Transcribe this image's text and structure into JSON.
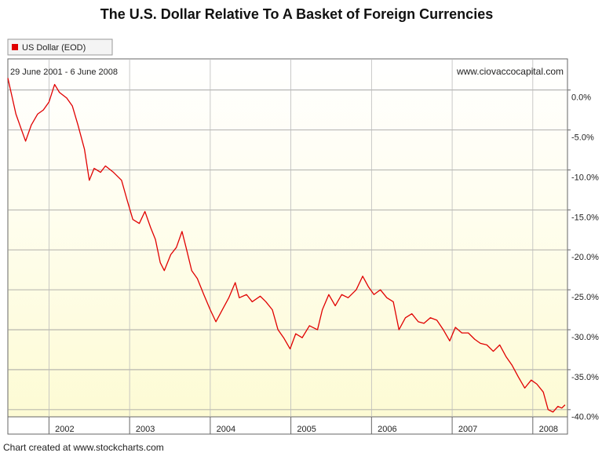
{
  "chart_data": {
    "type": "line",
    "title": "The U.S. Dollar Relative To A Basket of Foreign Currencies",
    "date_range": "29 June 2001 - 6 June 2008",
    "annotation": "www.ciovaccocapital.com",
    "footer": "Chart created at www.stockcharts.com",
    "x": [
      2001.49,
      2001.53,
      2001.59,
      2001.66,
      2001.71,
      2001.78,
      2001.86,
      2001.93,
      2002.0,
      2002.07,
      2002.13,
      2002.22,
      2002.29,
      2002.36,
      2002.44,
      2002.5,
      2002.56,
      2002.64,
      2002.7,
      2002.8,
      2002.9,
      2002.97,
      2003.04,
      2003.12,
      2003.19,
      2003.26,
      2003.32,
      2003.38,
      2003.43,
      2003.51,
      2003.58,
      2003.65,
      2003.7,
      2003.77,
      2003.84,
      2003.92,
      2004.0,
      2004.07,
      2004.15,
      2004.23,
      2004.31,
      2004.36,
      2004.45,
      2004.52,
      2004.62,
      2004.69,
      2004.77,
      2004.84,
      2004.91,
      2004.99,
      2005.06,
      2005.14,
      2005.23,
      2005.33,
      2005.39,
      2005.47,
      2005.55,
      2005.63,
      2005.71,
      2005.81,
      2005.89,
      2005.96,
      2006.03,
      2006.11,
      2006.19,
      2006.27,
      2006.34,
      2006.42,
      2006.5,
      2006.58,
      2006.65,
      2006.73,
      2006.81,
      2006.89,
      2006.97,
      2007.04,
      2007.12,
      2007.2,
      2007.28,
      2007.35,
      2007.43,
      2007.51,
      2007.59,
      2007.67,
      2007.74,
      2007.82,
      2007.9,
      2007.98,
      2008.05,
      2008.13,
      2008.19,
      2008.25,
      2008.31,
      2008.36,
      2008.4
    ],
    "series": [
      {
        "name": "US Dollar (EOD)",
        "color": "#e00000",
        "values": [
          1.5,
          -0.3,
          -3,
          -5,
          -6.4,
          -4.4,
          -3,
          -2.5,
          -1.5,
          0.7,
          -0.3,
          -1,
          -2,
          -4.4,
          -7.4,
          -11.3,
          -9.8,
          -10.3,
          -9.5,
          -10.3,
          -11.3,
          -13.8,
          -16.2,
          -16.7,
          -15.2,
          -17.2,
          -18.7,
          -21.6,
          -22.6,
          -20.6,
          -19.7,
          -17.7,
          -19.7,
          -22.6,
          -23.6,
          -25.6,
          -27.5,
          -29,
          -27.5,
          -26,
          -24.1,
          -26,
          -25.6,
          -26.5,
          -25.8,
          -26.5,
          -27.5,
          -30,
          -31,
          -32.4,
          -30.5,
          -31,
          -29.5,
          -30,
          -27.5,
          -25.6,
          -27,
          -25.6,
          -26,
          -25,
          -23.3,
          -24.6,
          -25.6,
          -25,
          -26,
          -26.5,
          -30,
          -28.5,
          -28,
          -29,
          -29.2,
          -28.5,
          -28.8,
          -30,
          -31.4,
          -29.7,
          -30.4,
          -30.4,
          -31.2,
          -31.7,
          -31.9,
          -32.7,
          -31.9,
          -33.4,
          -34.4,
          -35.9,
          -37.3,
          -36.3,
          -36.8,
          -37.8,
          -40,
          -40.3,
          -39.6,
          -39.8,
          -39.4
        ]
      }
    ],
    "xlim": [
      2001.49,
      2008.43
    ],
    "xticks": [
      2002,
      2003,
      2004,
      2005,
      2006,
      2007,
      2008
    ],
    "ylim": [
      -40.9,
      3.9
    ],
    "yticks": [
      {
        "value": 0,
        "label": "0.0%"
      },
      {
        "value": -5,
        "label": "-5.0%"
      },
      {
        "value": -10,
        "label": "-10.0%"
      },
      {
        "value": -15,
        "label": "-15.0%"
      },
      {
        "value": -20,
        "label": "-20.0%"
      },
      {
        "value": -25,
        "label": "-25.0%"
      },
      {
        "value": -30,
        "label": "-30.0%"
      },
      {
        "value": -35,
        "label": "-35.0%"
      },
      {
        "value": -40,
        "label": "-40.0%"
      }
    ],
    "grid": true
  }
}
